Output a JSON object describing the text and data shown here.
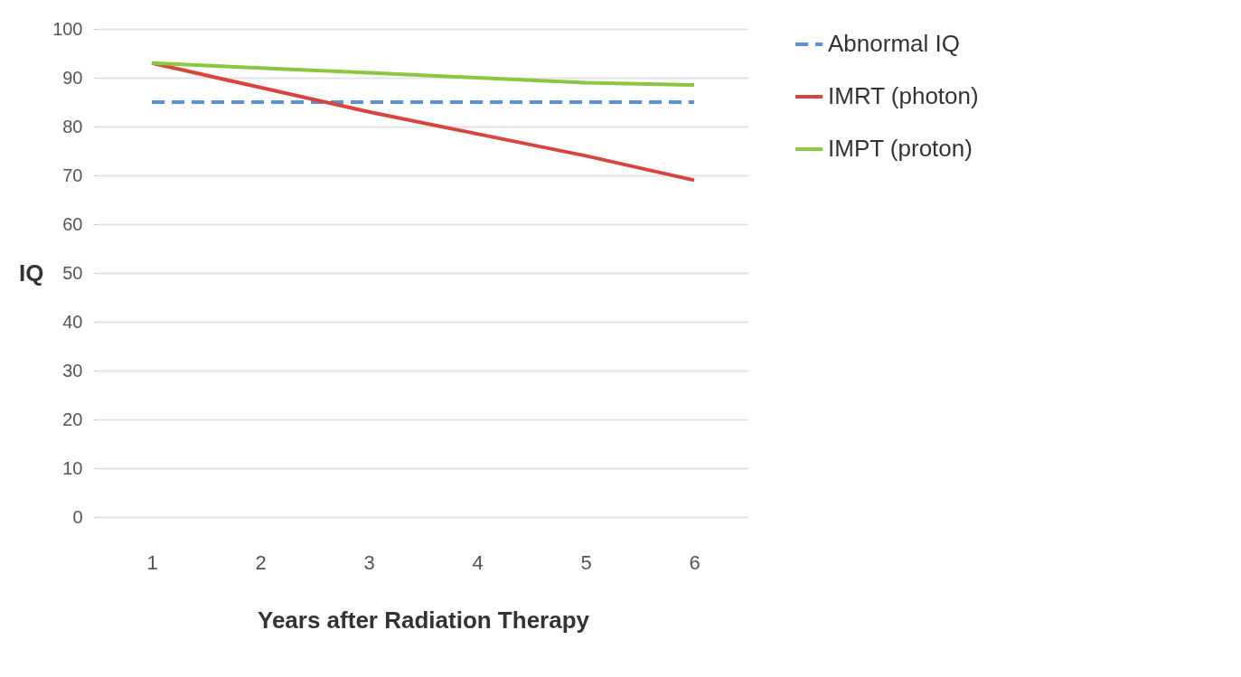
{
  "chart_data": {
    "type": "line",
    "xlabel": "Years after Radiation Therapy",
    "ylabel": "IQ",
    "categories": [
      "1",
      "2",
      "3",
      "4",
      "5",
      "6"
    ],
    "series": [
      {
        "name": "Abnormal IQ",
        "color": "#5b8fd6",
        "line_style": "dashed",
        "values": [
          85,
          85,
          85,
          85,
          85,
          85
        ]
      },
      {
        "name": "IMRT (photon)",
        "color": "#d9443f",
        "line_style": "solid",
        "values": [
          93,
          88,
          83,
          78.5,
          74,
          69
        ]
      },
      {
        "name": "IMPT (proton)",
        "color": "#8dc63f",
        "line_style": "solid",
        "values": [
          93,
          92,
          91,
          90,
          89,
          88.5
        ]
      }
    ],
    "ylim": [
      0,
      100
    ],
    "yticks": [
      0,
      10,
      20,
      30,
      40,
      50,
      60,
      70,
      80,
      90,
      100
    ],
    "grid": "y",
    "legend": "right",
    "marker": "none"
  }
}
